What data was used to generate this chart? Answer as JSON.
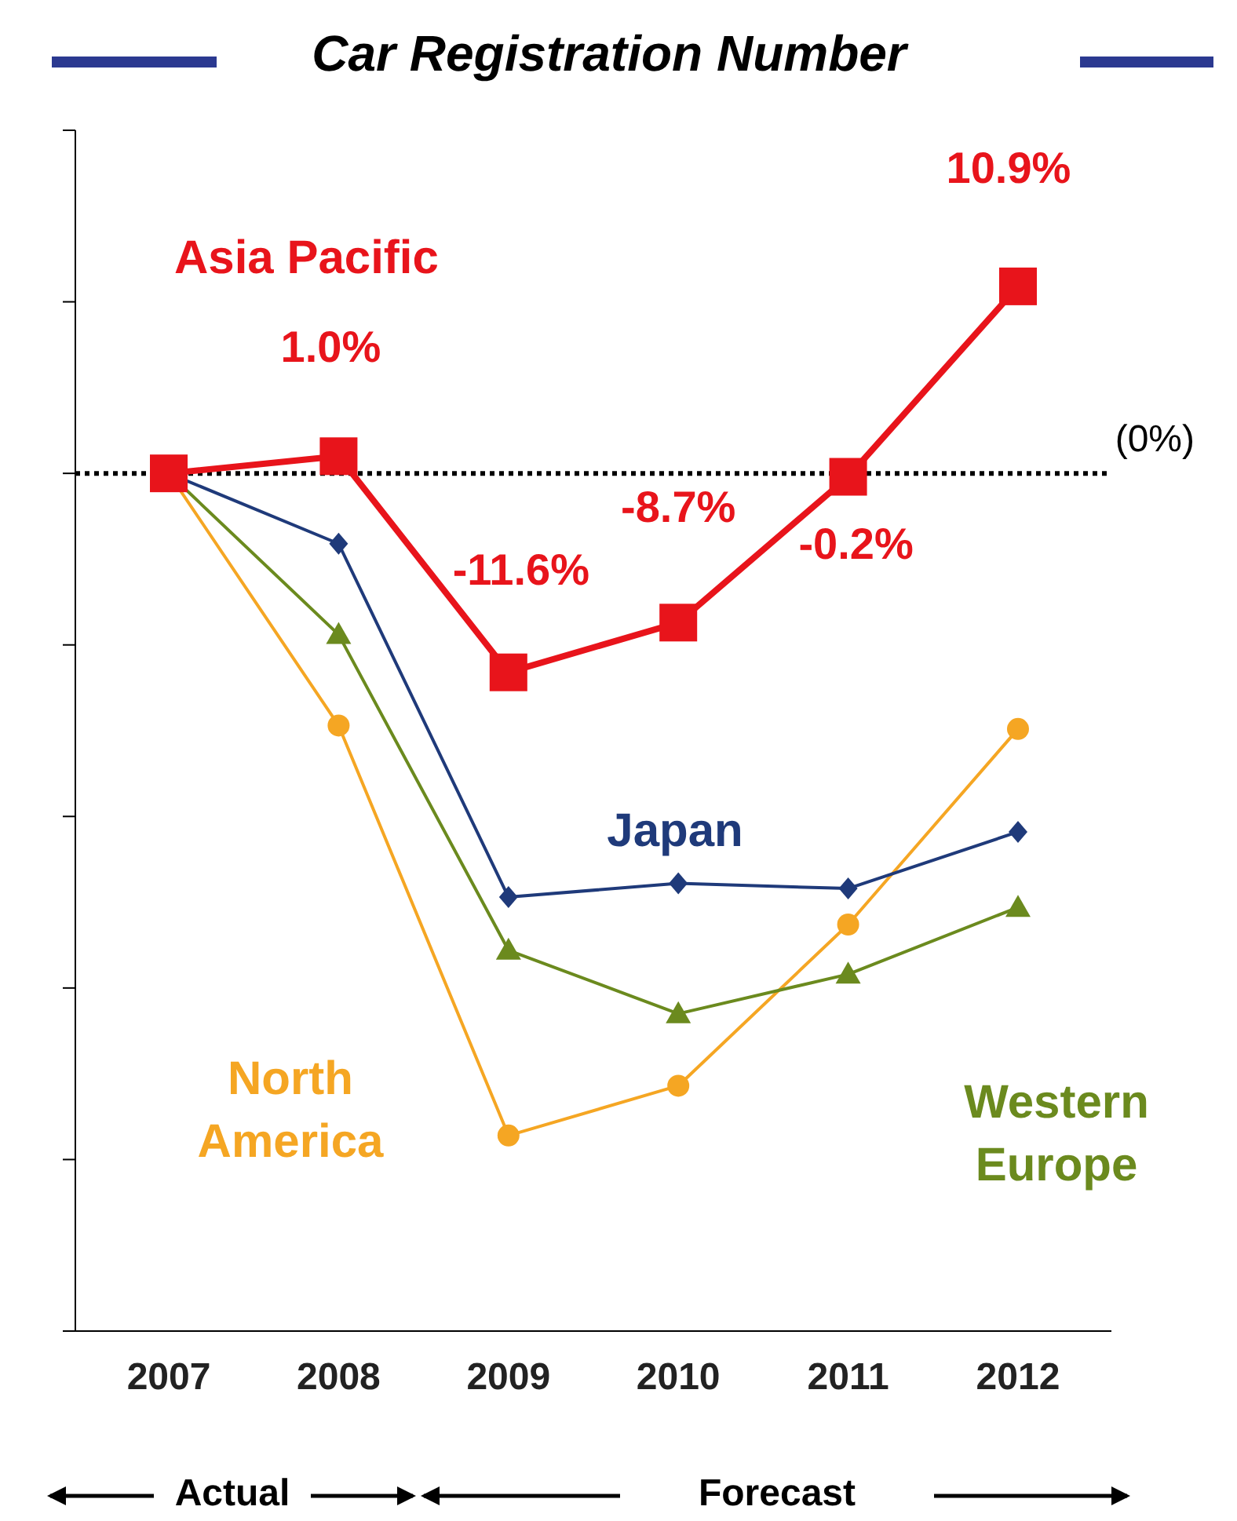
{
  "chart_data": {
    "type": "line",
    "title": "Car Registration Number",
    "categories": [
      "2007",
      "2008",
      "2009",
      "2010",
      "2011",
      "2012"
    ],
    "series": [
      {
        "name": "Asia Pacific",
        "color": "#e8141b",
        "marker": "square",
        "values": [
          0,
          1.0,
          -11.6,
          -8.7,
          -0.2,
          10.9
        ],
        "value_labels": [
          null,
          "1.0%",
          "-11.6%",
          "-8.7%",
          "-0.2%",
          "10.9%"
        ]
      },
      {
        "name": "Japan",
        "color": "#1f3a7a",
        "marker": "diamond",
        "values": [
          0,
          -4.1,
          -24.7,
          -23.9,
          -24.2,
          -20.9
        ]
      },
      {
        "name": "Western Europe",
        "color": "#6b8a1e",
        "marker": "triangle",
        "values": [
          0,
          -9.4,
          -27.8,
          -31.5,
          -29.2,
          -25.3
        ]
      },
      {
        "name": "North America",
        "color": "#f5a623",
        "marker": "circle",
        "values": [
          0,
          -14.7,
          -38.6,
          -35.7,
          -26.3,
          -14.9
        ]
      }
    ],
    "ylim": [
      -50,
      20
    ],
    "yticks": [
      {
        "value": 20,
        "label": null
      },
      {
        "value": 10,
        "label": null
      },
      {
        "value": 0,
        "label": null
      },
      {
        "value": -10,
        "label": null
      },
      {
        "value": -20,
        "label": null
      },
      {
        "value": -30,
        "label": null
      },
      {
        "value": -40,
        "label": null
      },
      {
        "value": -50,
        "label": null
      }
    ],
    "ref_lines": [
      {
        "axis": "y",
        "value": 0,
        "label": "(0%)",
        "color": "#000000",
        "line_style": "dotted"
      }
    ],
    "annotations": [
      "Actual",
      "Forecast"
    ]
  }
}
